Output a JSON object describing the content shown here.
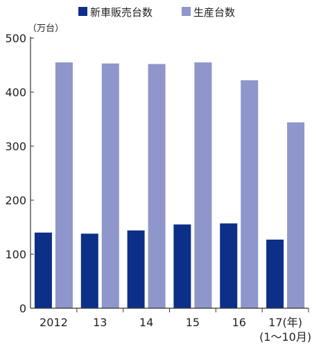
{
  "chart_data": {
    "type": "bar",
    "unit_label": "（万台）",
    "categories": [
      "2012",
      "13",
      "14",
      "15",
      "16",
      "17(年)"
    ],
    "category_sublabels": [
      "",
      "",
      "",
      "",
      "",
      "(1〜10月)"
    ],
    "series": [
      {
        "name": "新車販売台数",
        "color": "#0c2f88",
        "values": [
          140,
          138,
          144,
          155,
          157,
          127
        ]
      },
      {
        "name": "生産台数",
        "color": "#8e96cb",
        "values": [
          455,
          453,
          452,
          455,
          422,
          344
        ]
      }
    ],
    "ylim": [
      0,
      500
    ],
    "yticks": [
      "0",
      "100",
      "200",
      "300",
      "400",
      "500"
    ],
    "grid": false,
    "legend_position": "top"
  }
}
